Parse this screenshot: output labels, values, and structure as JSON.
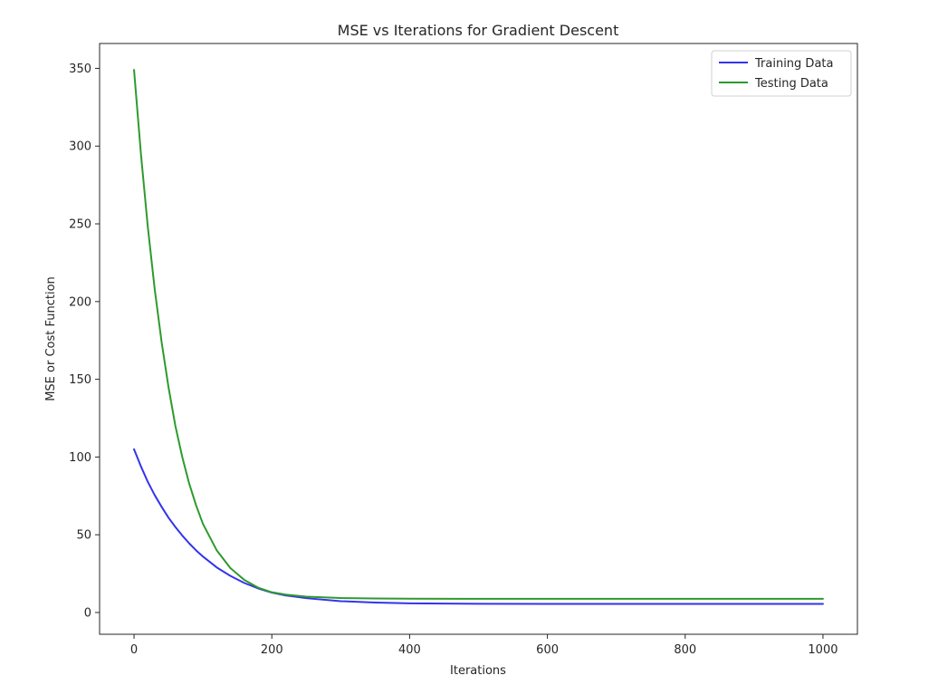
{
  "chart_data": {
    "type": "line",
    "title": "MSE vs Iterations for Gradient Descent",
    "xlabel": "Iterations",
    "ylabel": "MSE or Cost Function",
    "xlim": [
      -50,
      1050
    ],
    "ylim": [
      -14,
      366
    ],
    "xticks": [
      0,
      200,
      400,
      600,
      800,
      1000
    ],
    "yticks": [
      0,
      50,
      100,
      150,
      200,
      250,
      300,
      350
    ],
    "grid": false,
    "legend_position": "top-right",
    "series": [
      {
        "name": "Training Data",
        "color": "#3333ee",
        "x": [
          0,
          10,
          20,
          30,
          40,
          50,
          60,
          70,
          80,
          90,
          100,
          120,
          140,
          160,
          180,
          200,
          220,
          250,
          300,
          350,
          400,
          500,
          600,
          700,
          800,
          900,
          1000
        ],
        "y": [
          105,
          94,
          84,
          75.5,
          68,
          61,
          55,
          49.5,
          44.5,
          40,
          36,
          29,
          23.5,
          19,
          15.5,
          12.8,
          11,
          9.2,
          7.3,
          6.4,
          5.9,
          5.6,
          5.5,
          5.5,
          5.5,
          5.5,
          5.5
        ]
      },
      {
        "name": "Testing Data",
        "color": "#2e9a2e",
        "x": [
          0,
          10,
          20,
          30,
          40,
          50,
          60,
          70,
          80,
          90,
          100,
          120,
          140,
          160,
          180,
          200,
          220,
          250,
          300,
          350,
          400,
          500,
          600,
          700,
          800,
          900,
          1000
        ],
        "y": [
          349,
          295,
          248,
          208,
          174,
          145,
          120,
          100,
          83,
          69,
          57,
          40,
          28.5,
          21,
          16,
          13,
          11.5,
          10.2,
          9.3,
          9.0,
          8.9,
          8.8,
          8.8,
          8.8,
          8.8,
          8.8,
          8.8
        ]
      }
    ]
  }
}
